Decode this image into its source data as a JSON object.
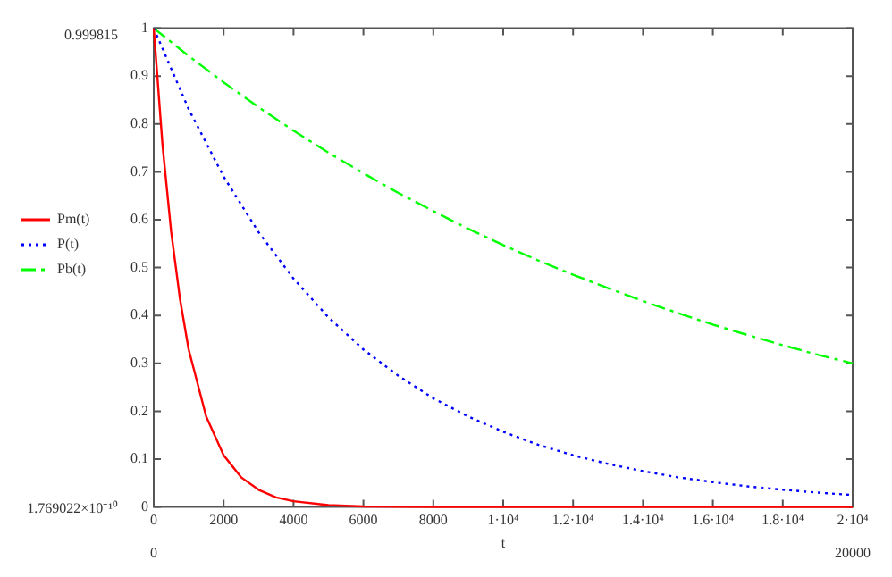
{
  "chart_data": {
    "type": "line",
    "xlabel": "t",
    "xlim": [
      0,
      20000
    ],
    "ylim": [
      0,
      1
    ],
    "xticks": [
      0,
      2000,
      4000,
      6000,
      8000,
      {
        "value": 10000,
        "label": "1·10⁴"
      },
      {
        "value": 12000,
        "label": "1.2·10⁴"
      },
      {
        "value": 14000,
        "label": "1.4·10⁴"
      },
      {
        "value": 16000,
        "label": "1.6·10⁴"
      },
      {
        "value": 18000,
        "label": "1.8·10⁴"
      },
      {
        "value": 20000,
        "label": "2·10⁴"
      }
    ],
    "yticks": [
      0,
      0.1,
      0.2,
      0.3,
      0.4,
      0.5,
      0.6,
      0.7,
      0.8,
      0.9,
      1
    ],
    "annotations": [
      "0.999815",
      "1.769022×10⁻¹⁰",
      "0",
      "20000"
    ],
    "grid": false,
    "legend": "left",
    "marker": "none",
    "series": [
      {
        "name": "Pm(t)",
        "color": "#ff0000",
        "line_style": "solid",
        "x": [
          0,
          250,
          500,
          750,
          1000,
          1500,
          2000,
          2500,
          3000,
          3500,
          4000,
          5000,
          6000,
          8000,
          10000,
          14000,
          20000
        ],
        "values": [
          1,
          0.757,
          0.574,
          0.435,
          0.329,
          0.189,
          0.108,
          0.062,
          0.036,
          0.02,
          0.012,
          0.004,
          0.001,
          0,
          0,
          0,
          0
        ]
      },
      {
        "name": "P(t)",
        "color": "#0000ff",
        "line_style": "dotted",
        "x": [
          0,
          1000,
          2000,
          3000,
          4000,
          5000,
          6000,
          7000,
          8000,
          9000,
          10000,
          11000,
          12000,
          13000,
          14000,
          15000,
          16000,
          17000,
          18000,
          19000,
          20000
        ],
        "values": [
          1,
          0.831,
          0.69,
          0.574,
          0.477,
          0.396,
          0.329,
          0.274,
          0.227,
          0.189,
          0.157,
          0.13,
          0.108,
          0.09,
          0.075,
          0.062,
          0.052,
          0.043,
          0.036,
          0.03,
          0.025
        ]
      },
      {
        "name": "Pb(t)",
        "color": "#00ff00",
        "line_style": "dashed",
        "x": [
          0,
          1000,
          2000,
          3000,
          4000,
          5000,
          6000,
          7000,
          8000,
          9000,
          10000,
          11000,
          12000,
          13000,
          14000,
          15000,
          16000,
          17000,
          18000,
          19000,
          20000
        ],
        "values": [
          1,
          0.942,
          0.887,
          0.835,
          0.786,
          0.74,
          0.697,
          0.656,
          0.618,
          0.581,
          0.547,
          0.515,
          0.485,
          0.457,
          0.43,
          0.405,
          0.381,
          0.359,
          0.338,
          0.318,
          0.3
        ]
      }
    ]
  }
}
